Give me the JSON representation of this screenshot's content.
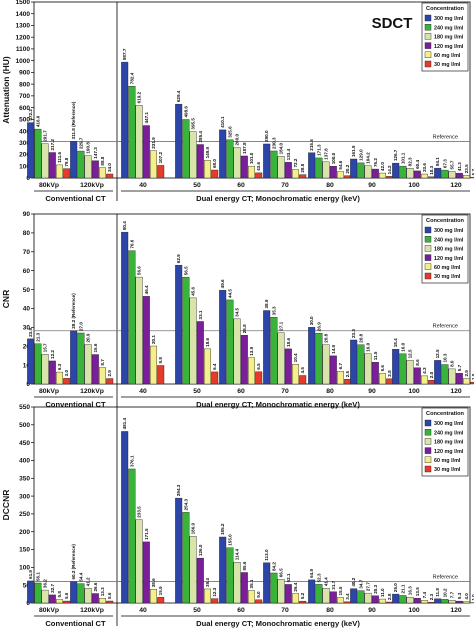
{
  "chart_data": [
    {
      "type": "bar",
      "title": "SDCT",
      "ylabel": "Attenuation (HU)",
      "xlabel_left": "Conventional CT",
      "xlabel_right": "Dual energy CT; Monochromatic energy (keV)",
      "ylim": [
        0,
        1500
      ],
      "yticks": [
        0,
        100,
        200,
        300,
        400,
        500,
        600,
        700,
        800,
        900,
        1000,
        1100,
        1200,
        1300,
        1400,
        1500
      ],
      "reference_value": 311.8,
      "reference_label": "Reference",
      "conventional_categories": [
        "80kVp",
        "120kVp"
      ],
      "conventional_values": [
        [
          472.2,
          416.6,
          291.7,
          217.2,
          111.6,
          79.8
        ],
        [
          311.8,
          229.7,
          190.8,
          147.3,
          88.8,
          34.0
        ]
      ],
      "bar_labels": [
        [
          "472.2",
          "416.6",
          "291.7",
          "217.2",
          "111.6",
          "79.8"
        ],
        [
          "311.8 (Reference)",
          "229.7",
          "190.8",
          "147.3",
          "88.8",
          "34.0"
        ]
      ],
      "categories": [
        "40",
        "50",
        "60",
        "70",
        "80",
        "90",
        "100",
        "120"
      ],
      "series": [
        {
          "name": "300 mg I/ml",
          "values": [
            987.7,
            629.4,
            410.1,
            290.0,
            215.5,
            161.9,
            126.7,
            84.1
          ]
        },
        {
          "name": "240 mg I/ml",
          "values": [
            782.4,
            498.6,
            325.6,
            230.3,
            171.3,
            129.0,
            101.1,
            67.3
          ]
        },
        {
          "name": "180 mg I/ml",
          "values": [
            619.2,
            395.5,
            260.0,
            184.0,
            137.8,
            104.2,
            82.3,
            55.7
          ]
        },
        {
          "name": "120 mg I/ml",
          "values": [
            447.1,
            285.4,
            187.8,
            133.4,
            100.0,
            76.2,
            60.4,
            41.3
          ]
        },
        {
          "name": "60 mg I/ml",
          "values": [
            231.9,
            149.9,
            101.0,
            72.2,
            54.6,
            42.0,
            33.6,
            23.5
          ]
        },
        {
          "name": "30 mg I/ml",
          "values": [
            107.2,
            68.0,
            43.6,
            28.8,
            20.2,
            14.2,
            10.3,
            5.7
          ]
        }
      ],
      "legend_title": "Concentration",
      "legend_position": "top-right"
    },
    {
      "type": "bar",
      "ylabel": "CNR",
      "xlabel_left": "Conventional CT",
      "xlabel_right": "Dual energy CT; Monochromatic energy (keV)",
      "ylim": [
        0,
        90
      ],
      "yticks": [
        0,
        10,
        20,
        30,
        40,
        50,
        60,
        70,
        80,
        90
      ],
      "reference_value": 28.2,
      "reference_label": "Reference",
      "conventional_categories": [
        "80kVp",
        "120kVp"
      ],
      "conventional_values": [
        [
          23.9,
          21.3,
          15.7,
          12.2,
          6.3,
          3.0
        ],
        [
          28.2,
          27.0,
          20.9,
          15.6,
          8.7,
          2.9
        ]
      ],
      "bar_labels": [
        [
          "23.9",
          "21.3",
          "15.7",
          "12.2",
          "6.3",
          "3.0"
        ],
        [
          "28.2 (Reference)",
          "27.0",
          "20.9",
          "15.6",
          "8.7",
          "2.9"
        ]
      ],
      "categories": [
        "40",
        "50",
        "60",
        "70",
        "80",
        "90",
        "100",
        "120"
      ],
      "series": [
        {
          "name": "300 mg I/ml",
          "values": [
            80.4,
            62.9,
            49.6,
            38.9,
            30.0,
            23.3,
            18.4,
            12.5
          ]
        },
        {
          "name": "240 mg I/ml",
          "values": [
            70.6,
            56.5,
            44.5,
            35.3,
            26.9,
            20.8,
            16.0,
            10.3
          ]
        },
        {
          "name": "180 mg I/ml",
          "values": [
            56.6,
            45.6,
            34.5,
            27.1,
            20.8,
            16.0,
            12.5,
            8.0
          ]
        },
        {
          "name": "120 mg I/ml",
          "values": [
            46.4,
            33.1,
            25.8,
            18.6,
            14.9,
            11.5,
            8.6,
            5.7
          ]
        },
        {
          "name": "60 mg I/ml",
          "values": [
            20.1,
            18.6,
            13.9,
            10.4,
            6.7,
            5.6,
            4.3,
            2.9
          ]
        },
        {
          "name": "30 mg I/ml",
          "values": [
            9.8,
            6.4,
            6.5,
            4.5,
            2.5,
            2.8,
            2.0,
            1.0
          ]
        }
      ],
      "legend_title": "Concentration",
      "legend_position": "top-right"
    },
    {
      "type": "bar",
      "ylabel": "DCCNR",
      "xlabel_left": "Conventional CT",
      "xlabel_right": "Dual energy CT; Monochromatic energy (keV)",
      "ylim": [
        0,
        550
      ],
      "yticks": [
        0,
        50,
        100,
        150,
        200,
        250,
        300,
        350,
        400,
        450,
        500,
        550
      ],
      "reference_value": 60.2,
      "reference_label": "Reference",
      "conventional_categories": [
        "80kVp",
        "120kVp"
      ],
      "conventional_values": [
        [
          61.9,
          56.1,
          36.2,
          22.7,
          9.8,
          5.5
        ],
        [
          60.2,
          54.4,
          41.2,
          26.6,
          13.3,
          5.6
        ]
      ],
      "bar_labels": [
        [
          "61.9",
          "56.1",
          "36.2",
          "22.7",
          "9.8",
          "5.5"
        ],
        [
          "60.2 (Reference)",
          "54.4",
          "41.2",
          "26.6",
          "13.3",
          "5.6"
        ]
      ],
      "categories": [
        "40",
        "50",
        "60",
        "70",
        "80",
        "90",
        "100",
        "120"
      ],
      "series": [
        {
          "name": "300 mg I/ml",
          "values": [
            481.4,
            294.3,
            185.2,
            113.0,
            64.9,
            40.2,
            25.0,
            11.8
          ]
        },
        {
          "name": "240 mg I/ml",
          "values": [
            376.1,
            254.3,
            155.0,
            84.2,
            52.3,
            34.7,
            21.1,
            10.2
          ]
        },
        {
          "name": "180 mg I/ml",
          "values": [
            233.5,
            186.9,
            114.4,
            66.5,
            41.4,
            27.7,
            16.3,
            7.7
          ]
        },
        {
          "name": "120 mg I/ml",
          "values": [
            171.5,
            126.0,
            85.6,
            52.1,
            31.7,
            20.3,
            13.5,
            5.3
          ]
        },
        {
          "name": "60 mg I/ml",
          "values": [
            38.6,
            39.4,
            35.1,
            26.4,
            15.5,
            11.0,
            7.4,
            4.0
          ]
        },
        {
          "name": "30 mg I/ml",
          "values": [
            15.9,
            12.3,
            9.0,
            5.2,
            3.4,
            2.8,
            2.3,
            1.0
          ]
        }
      ],
      "legend_title": "Concentration",
      "legend_position": "top-right"
    }
  ],
  "colors": [
    "#2c45a8",
    "#3ab33a",
    "#d8e4a8",
    "#7a1e9a",
    "#f5ee8a",
    "#e63a2a"
  ]
}
